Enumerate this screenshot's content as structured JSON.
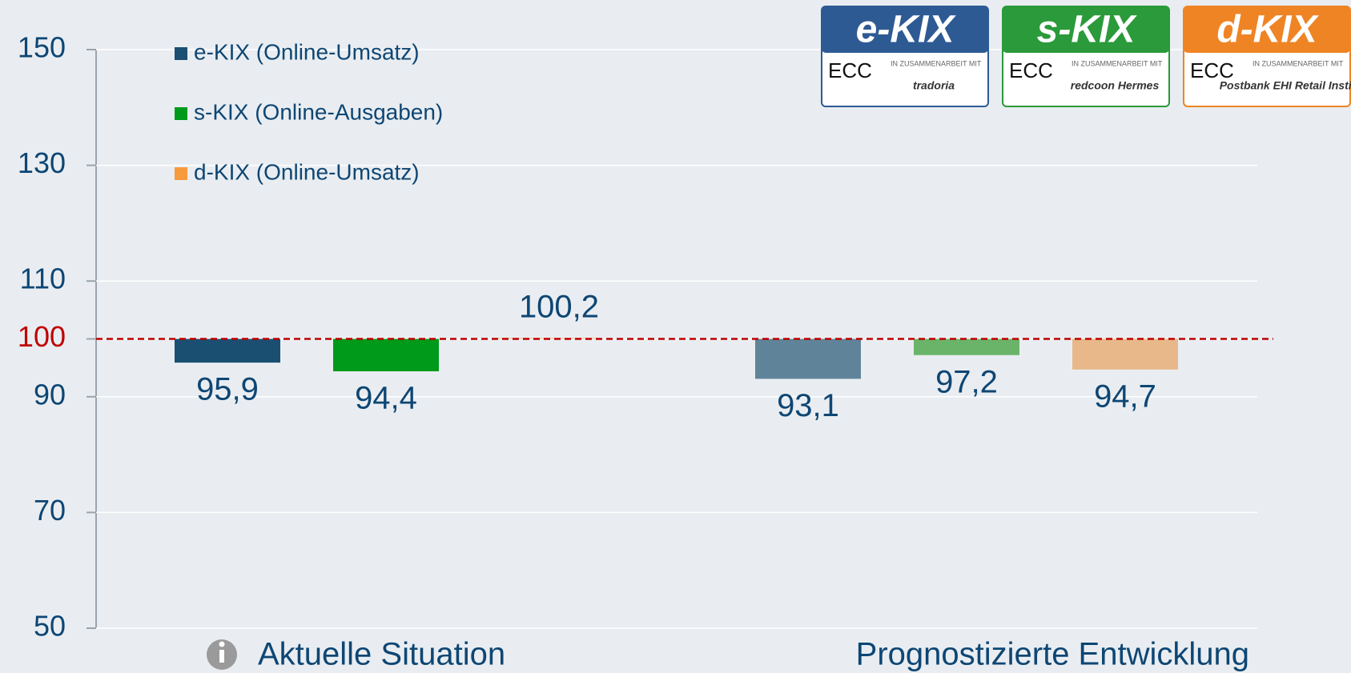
{
  "chart_data": {
    "type": "bar",
    "categories": [
      "Aktuelle Situation",
      "Prognostizierte Entwicklung"
    ],
    "series": [
      {
        "name": "e-KIX (Online-Umsatz)",
        "color": "#1a4f72",
        "colors": [
          "#1a4f72",
          "#5f8499"
        ],
        "values": [
          95.9,
          93.1
        ],
        "value_labels": [
          "95,9",
          "93,1"
        ]
      },
      {
        "name": "s-KIX (Online-Ausgaben)",
        "color": "#009a1a",
        "colors": [
          "#009a1a",
          "#6ab46a"
        ],
        "values": [
          94.4,
          97.2
        ],
        "value_labels": [
          "94,4",
          "97,2"
        ]
      },
      {
        "name": "d-KIX (Online-Umsatz)",
        "color": "#f79a3c",
        "colors": [
          "#f3cfae",
          "#e8b88a"
        ],
        "values": [
          100.2,
          94.7
        ],
        "value_labels": [
          "100,2",
          "94,7"
        ]
      }
    ],
    "ylim": [
      50,
      150
    ],
    "yticks": [
      50,
      70,
      90,
      100,
      110,
      130,
      150
    ],
    "grid": true,
    "baseline": 100,
    "reference_line": {
      "value": 100,
      "color": "#c00000"
    }
  },
  "logos": [
    {
      "title": "e-KIX",
      "color": "#2e5a94",
      "org": "ECC",
      "note": "IN ZUSAMMENARBEIT MIT",
      "partner": "tradoria"
    },
    {
      "title": "s-KIX",
      "color": "#2a9a3a",
      "org": "ECC",
      "note": "IN ZUSAMMENARBEIT MIT",
      "partner": "redcoon Hermes"
    },
    {
      "title": "d-KIX",
      "color": "#ef8424",
      "org": "ECC",
      "note": "IN ZUSAMMENARBEIT MIT",
      "partner": "Postbank EHI Retail Institute"
    }
  ]
}
